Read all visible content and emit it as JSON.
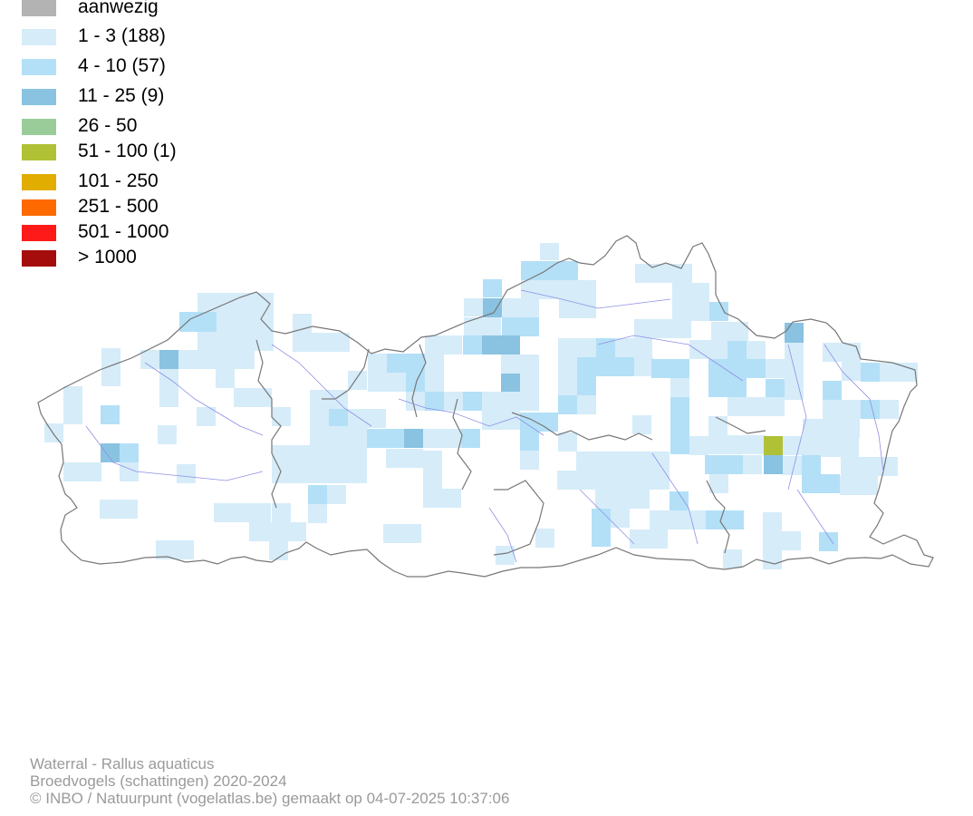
{
  "legend": {
    "items": [
      {
        "label": "aanwezig",
        "color": "#b3b3b3"
      },
      {
        "label": "1 - 3 (188)",
        "color": "#d6ecf9"
      },
      {
        "label": "4 - 10 (57)",
        "color": "#b3e0f7"
      },
      {
        "label": "11 - 25 (9)",
        "color": "#89c3e1"
      },
      {
        "label": "26 - 50",
        "color": "#99cc99"
      },
      {
        "label": "51 - 100 (1)",
        "color": "#b1c136"
      },
      {
        "label": "101 - 250",
        "color": "#e0ad00"
      },
      {
        "label": "251 - 500",
        "color": "#ff6a00"
      },
      {
        "label": "501 - 1000",
        "color": "#ff1a1a"
      },
      {
        "label": "> 1000",
        "color": "#a50d0d"
      }
    ]
  },
  "map": {
    "border_color": "#777777",
    "river_color": "#8f8fe6"
  },
  "credits": {
    "species": "Waterral - Rallus aquaticus",
    "dataset": "Broedvogels (schattingen) 2020-2024",
    "copyright": "© INBO / Natuurpunt (vogelatlas.be) gemaakt op 04-07-2025 10:37:06"
  }
}
